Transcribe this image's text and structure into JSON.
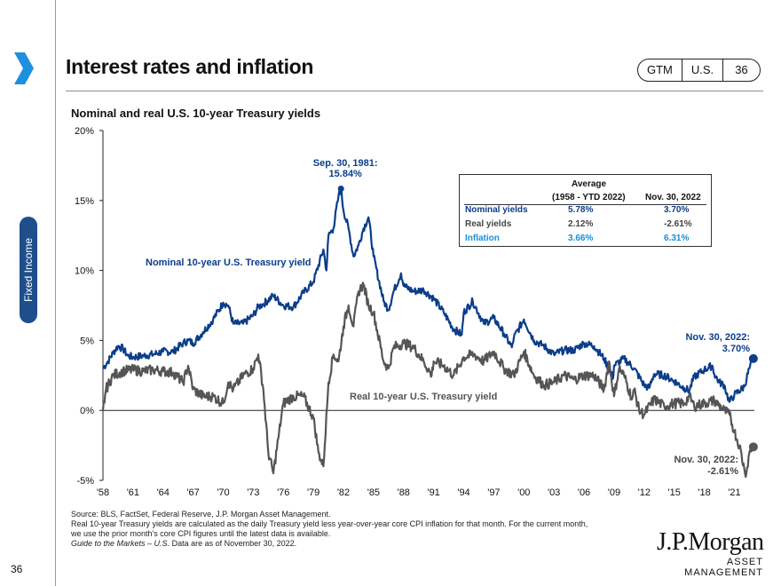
{
  "header": {
    "title": "Interest rates and inflation",
    "pill": [
      "GTM",
      "U.S.",
      "36"
    ]
  },
  "side_tab": {
    "label": "Fixed Income"
  },
  "subtitle": "Nominal and real U.S. 10-year Treasury yields",
  "colors": {
    "nominal": "#0b3d8a",
    "real": "#555555",
    "inflation": "#1a8fd6",
    "accent": "#1f8fe0"
  },
  "chart_data": {
    "type": "line",
    "title": "Nominal and real U.S. 10-year Treasury yields",
    "ylim": [
      -5,
      20
    ],
    "xlim": [
      1958,
      2023
    ],
    "y_ticks": [
      -5,
      0,
      5,
      10,
      15,
      20
    ],
    "y_tick_labels": [
      "-5%",
      "0%",
      "5%",
      "10%",
      "15%",
      "20%"
    ],
    "x_ticks": [
      1958,
      1961,
      1964,
      1967,
      1970,
      1973,
      1976,
      1979,
      1982,
      1985,
      1988,
      1991,
      1994,
      1997,
      2000,
      2003,
      2006,
      2009,
      2012,
      2015,
      2018,
      2021
    ],
    "x_tick_labels": [
      "'58",
      "'61",
      "'64",
      "'67",
      "'70",
      "'73",
      "'76",
      "'79",
      "'82",
      "'85",
      "'88",
      "'91",
      "'94",
      "'97",
      "'00",
      "'03",
      "'06",
      "'09",
      "'12",
      "'15",
      "'18",
      "'21"
    ],
    "grid": false,
    "series": [
      {
        "name": "Nominal 10-year U.S. Treasury yield",
        "x": [
          1958.0,
          1958.5,
          1959.0,
          1959.5,
          1960.0,
          1960.5,
          1961.0,
          1962.0,
          1963.0,
          1964.0,
          1965.0,
          1966.0,
          1966.5,
          1967.0,
          1968.0,
          1969.0,
          1970.0,
          1970.5,
          1971.0,
          1972.0,
          1973.0,
          1973.5,
          1974.0,
          1975.0,
          1976.0,
          1977.0,
          1978.0,
          1979.0,
          1980.0,
          1980.3,
          1980.5,
          1981.0,
          1981.5,
          1981.75,
          1982.0,
          1982.5,
          1983.0,
          1983.5,
          1984.0,
          1984.5,
          1985.0,
          1986.0,
          1986.5,
          1987.0,
          1987.75,
          1988.0,
          1989.0,
          1990.0,
          1991.0,
          1992.0,
          1993.0,
          1993.8,
          1994.0,
          1994.9,
          1996.0,
          1997.0,
          1998.0,
          1998.8,
          1999.0,
          2000.0,
          2001.0,
          2002.0,
          2003.0,
          2004.0,
          2005.0,
          2006.0,
          2007.0,
          2008.0,
          2008.9,
          2009.0,
          2010.0,
          2011.0,
          2012.0,
          2012.5,
          2013.0,
          2014.0,
          2015.0,
          2016.0,
          2016.5,
          2017.0,
          2018.0,
          2018.8,
          2019.0,
          2019.5,
          2020.0,
          2020.5,
          2021.0,
          2022.0,
          2022.5,
          2022.9
        ],
        "values": [
          3.0,
          3.5,
          4.1,
          4.6,
          4.4,
          3.9,
          3.8,
          3.9,
          4.0,
          4.2,
          4.2,
          4.8,
          5.0,
          4.8,
          5.6,
          6.5,
          7.7,
          7.5,
          6.2,
          6.2,
          6.8,
          7.4,
          7.6,
          8.2,
          7.5,
          7.4,
          8.4,
          9.2,
          11.5,
          10.0,
          12.5,
          13.0,
          15.3,
          15.8,
          14.3,
          13.0,
          11.0,
          11.8,
          13.0,
          13.8,
          11.0,
          7.8,
          7.2,
          8.5,
          9.8,
          8.9,
          8.5,
          8.6,
          8.0,
          7.0,
          5.8,
          5.4,
          7.0,
          7.8,
          6.2,
          6.6,
          5.5,
          4.5,
          5.2,
          6.5,
          5.0,
          4.6,
          4.0,
          4.3,
          4.3,
          4.8,
          4.6,
          3.7,
          2.3,
          3.2,
          3.7,
          3.0,
          1.8,
          1.6,
          2.6,
          2.5,
          2.1,
          1.6,
          1.4,
          2.4,
          2.9,
          3.2,
          2.6,
          2.0,
          1.8,
          0.6,
          1.1,
          1.7,
          3.0,
          3.7
        ]
      },
      {
        "name": "Real 10-year U.S. Treasury yield",
        "x": [
          1958.0,
          1958.3,
          1959.0,
          1960.0,
          1961.0,
          1962.0,
          1963.0,
          1964.0,
          1965.0,
          1966.0,
          1966.5,
          1967.0,
          1968.0,
          1969.0,
          1970.0,
          1970.5,
          1971.0,
          1972.0,
          1973.0,
          1973.5,
          1974.0,
          1974.5,
          1975.0,
          1975.5,
          1976.0,
          1977.0,
          1978.0,
          1979.0,
          1979.5,
          1980.0,
          1980.5,
          1981.0,
          1981.5,
          1982.0,
          1982.5,
          1983.0,
          1983.5,
          1984.0,
          1984.5,
          1985.0,
          1986.0,
          1986.5,
          1987.0,
          1988.0,
          1989.0,
          1990.0,
          1990.8,
          1991.0,
          1992.0,
          1993.0,
          1994.0,
          1995.0,
          1996.0,
          1997.0,
          1998.0,
          1999.0,
          2000.0,
          2001.0,
          2002.0,
          2003.0,
          2004.0,
          2005.0,
          2006.0,
          2007.0,
          2008.0,
          2008.5,
          2009.0,
          2009.5,
          2010.0,
          2010.8,
          2011.0,
          2011.5,
          2012.0,
          2013.0,
          2014.0,
          2015.0,
          2016.0,
          2016.5,
          2017.0,
          2018.0,
          2019.0,
          2020.0,
          2020.5,
          2021.0,
          2021.5,
          2022.0,
          2022.2,
          2022.5,
          2022.9
        ],
        "values": [
          0.0,
          1.5,
          2.5,
          2.8,
          2.9,
          2.8,
          2.9,
          2.8,
          2.7,
          2.0,
          3.2,
          1.5,
          1.0,
          1.0,
          0.5,
          2.0,
          1.5,
          2.5,
          3.0,
          4.0,
          1.5,
          -3.0,
          -4.5,
          -2.0,
          0.5,
          1.0,
          1.0,
          -0.5,
          -3.0,
          -4.0,
          2.0,
          4.0,
          3.5,
          6.0,
          7.5,
          6.0,
          8.5,
          9.0,
          7.5,
          7.0,
          3.5,
          3.0,
          4.5,
          4.8,
          4.5,
          3.5,
          2.5,
          3.5,
          3.2,
          2.5,
          3.8,
          4.0,
          3.5,
          4.2,
          3.0,
          2.5,
          4.2,
          2.5,
          1.8,
          2.0,
          2.5,
          2.2,
          2.5,
          2.5,
          1.5,
          3.5,
          1.0,
          3.0,
          2.5,
          0.8,
          1.5,
          0.0,
          -0.3,
          0.8,
          0.3,
          0.5,
          0.5,
          1.0,
          0.3,
          0.5,
          0.7,
          0.0,
          -0.3,
          -1.5,
          -2.5,
          -4.2,
          -4.5,
          -3.0,
          -2.6
        ]
      }
    ],
    "annotations": [
      {
        "title": "Sep. 30, 1981:",
        "value": "15.84%",
        "x": 1981.75,
        "y": 15.84
      },
      {
        "title": "Nov. 30, 2022:",
        "value": "3.70%",
        "x": 2022.9,
        "y": 3.7
      },
      {
        "title": "Nov. 30, 2022:",
        "value": "-2.61%",
        "x": 2022.9,
        "y": -2.61
      }
    ],
    "labels": {
      "nominal": "Nominal 10-year U.S. Treasury yield",
      "real": "Real 10-year U.S. Treasury yield"
    }
  },
  "table": {
    "heading": "Average",
    "col1": "(1958 - YTD 2022)",
    "col2": "Nov. 30, 2022",
    "rows": [
      {
        "name": "Nominal yields",
        "avg": "5.78%",
        "current": "3.70%",
        "color": "#0b3d8a"
      },
      {
        "name": "Real yields",
        "avg": "2.12%",
        "current": "-2.61%",
        "color": "#444444"
      },
      {
        "name": "Inflation",
        "avg": "3.66%",
        "current": "6.31%",
        "color": "#1a8fd6"
      }
    ]
  },
  "footnotes": {
    "line1": "Source: BLS, FactSet, Federal Reserve, J.P. Morgan Asset Management.",
    "line2": "Real 10-year Treasury yields are calculated as the daily Treasury yield less year-over-year core CPI inflation for that month. For the current month,",
    "line3": "we use the prior month's core CPI figures until the latest data is available.",
    "line4_italic": "Guide to the Markets – U.S.",
    "line4_rest": " Data are as of November 30, 2022."
  },
  "logo": {
    "main": "J.P.Morgan",
    "sub": "ASSET MANAGEMENT"
  },
  "page_number": "36"
}
